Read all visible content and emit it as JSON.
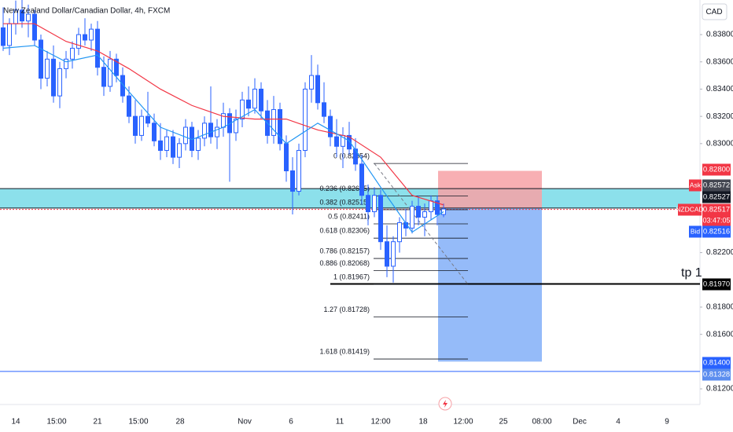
{
  "chart_data": {
    "type": "candlestick",
    "title": "New Zealand Dollar/Canadian Dollar, 4h, FXCM",
    "currency": "CAD",
    "annotation": "tp 1",
    "x_labels": [
      "14",
      "15:00",
      "21",
      "15:00",
      "28",
      "Nov",
      "6",
      "11",
      "12:00",
      "18",
      "12:00",
      "25",
      "08:00",
      "Dec",
      "4",
      "9"
    ],
    "ylim": [
      0.81085,
      0.84054
    ],
    "yticks": [
      {
        "value": 0.838,
        "label": "0.83800"
      },
      {
        "value": 0.836,
        "label": "0.83600"
      },
      {
        "value": 0.834,
        "label": "0.83400"
      },
      {
        "value": 0.832,
        "label": "0.83200"
      },
      {
        "value": 0.83,
        "label": "0.83000"
      },
      {
        "value": 0.822,
        "label": "0.82200"
      },
      {
        "value": 0.818,
        "label": "0.81800"
      },
      {
        "value": 0.816,
        "label": "0.81600"
      },
      {
        "value": 0.812,
        "label": "0.81200"
      }
    ],
    "up_color": "#ffffff",
    "down_color": "#2962ff",
    "border_color": "#2962ff",
    "candles": {
      "open": [
        0.8385,
        0.8372,
        0.8388,
        0.8398,
        0.839,
        0.8395,
        0.8376,
        0.8348,
        0.8362,
        0.8335,
        0.8355,
        0.8362,
        0.837,
        0.838,
        0.8376,
        0.8384,
        0.8356,
        0.8342,
        0.8362,
        0.835,
        0.8335,
        0.832,
        0.8306,
        0.832,
        0.8315,
        0.8302,
        0.8295,
        0.8305,
        0.829,
        0.83,
        0.8312,
        0.8295,
        0.8304,
        0.8315,
        0.8305,
        0.8312,
        0.8322,
        0.8308,
        0.8318,
        0.8332,
        0.8326,
        0.834,
        0.8324,
        0.8306,
        0.8325,
        0.83,
        0.828,
        0.8265,
        0.8295,
        0.834,
        0.835,
        0.833,
        0.832,
        0.8305,
        0.8298,
        0.8306,
        0.8296,
        0.8285,
        0.8262,
        0.825,
        0.8262,
        0.8228,
        0.821,
        0.8228,
        0.8242,
        0.8238,
        0.8254,
        0.8246,
        0.825,
        0.8258,
        0.8248
      ],
      "high": [
        0.84,
        0.8392,
        0.8405,
        0.8408,
        0.8402,
        0.8398,
        0.838,
        0.8368,
        0.8372,
        0.836,
        0.8368,
        0.8375,
        0.8385,
        0.8392,
        0.8388,
        0.839,
        0.8364,
        0.8368,
        0.8366,
        0.8356,
        0.8342,
        0.8332,
        0.8325,
        0.8338,
        0.8322,
        0.8315,
        0.831,
        0.831,
        0.8304,
        0.8318,
        0.8316,
        0.831,
        0.832,
        0.8342,
        0.8318,
        0.833,
        0.8326,
        0.8325,
        0.8338,
        0.8342,
        0.8348,
        0.8345,
        0.8332,
        0.8335,
        0.833,
        0.8306,
        0.829,
        0.83,
        0.8345,
        0.8365,
        0.8358,
        0.8345,
        0.8325,
        0.8318,
        0.8312,
        0.8316,
        0.8304,
        0.8292,
        0.827,
        0.8268,
        0.8266,
        0.824,
        0.8232,
        0.8246,
        0.8252,
        0.8258,
        0.8262,
        0.8256,
        0.8262,
        0.8262,
        0.8256
      ],
      "low": [
        0.8368,
        0.8365,
        0.838,
        0.8385,
        0.8378,
        0.8372,
        0.834,
        0.8342,
        0.833,
        0.8326,
        0.8348,
        0.8355,
        0.8365,
        0.8372,
        0.8368,
        0.835,
        0.8335,
        0.8338,
        0.8345,
        0.833,
        0.8315,
        0.83,
        0.8302,
        0.8312,
        0.8298,
        0.8288,
        0.829,
        0.8285,
        0.8282,
        0.8295,
        0.829,
        0.8288,
        0.8298,
        0.83,
        0.8296,
        0.8305,
        0.8272,
        0.8302,
        0.8312,
        0.832,
        0.8322,
        0.8318,
        0.83,
        0.83,
        0.8295,
        0.8272,
        0.8248,
        0.8262,
        0.829,
        0.833,
        0.8325,
        0.8315,
        0.8298,
        0.829,
        0.8282,
        0.8292,
        0.828,
        0.8255,
        0.824,
        0.8246,
        0.8222,
        0.8202,
        0.8198,
        0.822,
        0.8232,
        0.8234,
        0.824,
        0.8232,
        0.8244,
        0.824,
        0.8246
      ],
      "close": [
        0.8372,
        0.8388,
        0.8398,
        0.839,
        0.8395,
        0.8376,
        0.8348,
        0.8362,
        0.8335,
        0.8355,
        0.8362,
        0.837,
        0.838,
        0.8376,
        0.8384,
        0.8356,
        0.8342,
        0.8362,
        0.835,
        0.8335,
        0.832,
        0.8306,
        0.832,
        0.8315,
        0.8302,
        0.8295,
        0.8305,
        0.829,
        0.83,
        0.8312,
        0.8295,
        0.8304,
        0.8315,
        0.8305,
        0.8312,
        0.8322,
        0.8308,
        0.8318,
        0.8332,
        0.8326,
        0.834,
        0.8324,
        0.8306,
        0.8325,
        0.83,
        0.828,
        0.8265,
        0.8295,
        0.834,
        0.835,
        0.833,
        0.832,
        0.8305,
        0.8298,
        0.8306,
        0.8296,
        0.8285,
        0.8262,
        0.825,
        0.8262,
        0.8228,
        0.821,
        0.8228,
        0.8242,
        0.8238,
        0.8254,
        0.8246,
        0.825,
        0.8258,
        0.8248,
        0.8252
      ]
    },
    "averages": [
      {
        "color": "#f23645",
        "x": [
          0,
          5,
          10,
          15,
          20,
          25,
          30,
          35,
          40,
          45,
          50,
          55,
          60,
          65,
          70
        ],
        "values": [
          0.8388,
          0.8388,
          0.8375,
          0.8368,
          0.8355,
          0.834,
          0.8328,
          0.832,
          0.8318,
          0.8318,
          0.831,
          0.8305,
          0.829,
          0.8262,
          0.8255
        ]
      },
      {
        "color": "#2196f3",
        "x": [
          0,
          5,
          10,
          15,
          20,
          25,
          30,
          35,
          40,
          45,
          50,
          55,
          60,
          65,
          70
        ],
        "values": [
          0.837,
          0.8372,
          0.836,
          0.8365,
          0.8338,
          0.8312,
          0.8303,
          0.8312,
          0.8325,
          0.83,
          0.8315,
          0.8302,
          0.8268,
          0.8235,
          0.825
        ]
      }
    ],
    "zone": {
      "from": 0.82527,
      "to": 0.8267,
      "color": "#7fdde9"
    },
    "hlines": [
      {
        "value": 0.8267,
        "color": "#131722"
      },
      {
        "value": 0.82527,
        "color": "#131722"
      },
      {
        "value": 0.82517,
        "color": "#f23645"
      },
      {
        "value": 0.8197,
        "color": "#000000"
      },
      {
        "value": 0.81328,
        "color": "#2962ff"
      }
    ],
    "fib": [
      {
        "value": 0.82854,
        "label": "0 (0.82854)"
      },
      {
        "value": 0.82615,
        "label": "0.236 (0.82615)"
      },
      {
        "value": 0.82515,
        "label": "0.382 (0.82515)"
      },
      {
        "value": 0.82411,
        "label": "0.5 (0.82411)"
      },
      {
        "value": 0.82306,
        "label": "0.618 (0.82306)"
      },
      {
        "value": 0.82157,
        "label": "0.786 (0.82157)"
      },
      {
        "value": 0.82068,
        "label": "0.886 (0.82068)"
      },
      {
        "value": 0.81967,
        "label": "1 (0.81967)"
      },
      {
        "value": 0.81728,
        "label": "1.27 (0.81728)"
      },
      {
        "value": 0.81419,
        "label": "1.618 (0.81419)"
      }
    ],
    "position": {
      "stop": 0.828,
      "entry": 0.82527,
      "target": 0.814,
      "stop_color": "#f7a1a6",
      "target_color": "#8ab4f8"
    },
    "badges": [
      {
        "value": 0.828,
        "label": "0.82800",
        "color": "#f23645"
      },
      {
        "tag": "Ask",
        "value": 0.82572,
        "label": "0.82572",
        "color": "#434651",
        "tag_color": "#f23645"
      },
      {
        "value": 0.82527,
        "label": "0.82527",
        "color": "#131722"
      },
      {
        "tag": "NZDCAD",
        "value": 0.82517,
        "label": "0.82517",
        "timer": "03:47:05",
        "color": "#f23645",
        "tag_color": "#f23645"
      },
      {
        "tag": "Bid",
        "value": 0.82516,
        "label": "0.82516",
        "color": "#2962ff",
        "tag_color": "#2962ff"
      },
      {
        "value": 0.8197,
        "label": "0.81970",
        "color": "#000000"
      },
      {
        "value": 0.814,
        "label": "0.81400",
        "color": "#2962ff"
      },
      {
        "value": 0.81328,
        "label": "0.81328",
        "color": "#5b8def"
      }
    ]
  }
}
